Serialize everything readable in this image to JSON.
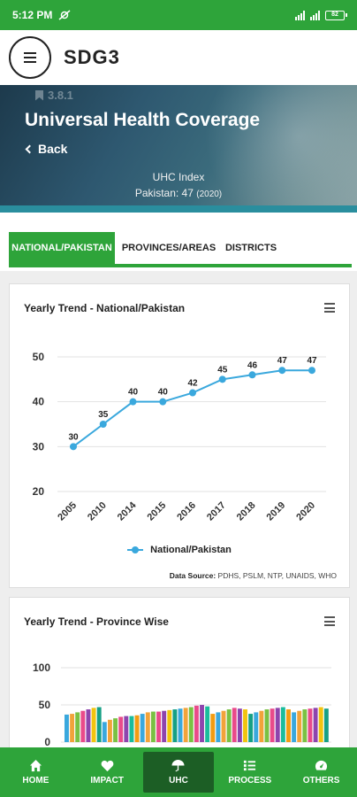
{
  "status": {
    "time": "5:12 PM",
    "battery": "82"
  },
  "app": {
    "title": "SDG3"
  },
  "hero": {
    "code": "3.8.1",
    "title": "Universal Health Coverage",
    "back_label": "Back",
    "index_label": "UHC Index",
    "index_value": "Pakistan: 47",
    "index_year": "(2020)"
  },
  "tabs": [
    {
      "label": "NATIONAL/PAKISTAN"
    },
    {
      "label": "PROVINCES/AREAS"
    },
    {
      "label": "DISTRICTS"
    }
  ],
  "card1": {
    "title": "Yearly Trend - National/Pakistan",
    "legend": "National/Pakistan",
    "source_label": "Data Source:",
    "source_value": "PDHS, PSLM, NTP, UNAIDS, WHO"
  },
  "card2": {
    "title": "Yearly Trend - Province Wise"
  },
  "nav": [
    {
      "label": "HOME",
      "icon": "home-icon"
    },
    {
      "label": "IMPACT",
      "icon": "heart-icon"
    },
    {
      "label": "UHC",
      "icon": "umbrella-icon"
    },
    {
      "label": "PROCESS",
      "icon": "list-icon"
    },
    {
      "label": "OTHERS",
      "icon": "gauge-icon"
    }
  ],
  "chart_data": [
    {
      "type": "line",
      "title": "Yearly Trend - National/Pakistan",
      "categories": [
        "2005",
        "2010",
        "2014",
        "2015",
        "2016",
        "2017",
        "2018",
        "2019",
        "2020"
      ],
      "series": [
        {
          "name": "National/Pakistan",
          "values": [
            30,
            35,
            40,
            40,
            42,
            45,
            46,
            47,
            47
          ],
          "color": "#3aa8dd"
        }
      ],
      "yticks": [
        20,
        30,
        40,
        50
      ],
      "ylim": [
        20,
        50
      ],
      "grid": true,
      "legend": "bottom"
    },
    {
      "type": "bar",
      "title": "Yearly Trend - Province Wise",
      "yticks": [
        0,
        50,
        100
      ],
      "ylim": [
        0,
        100
      ],
      "values": [
        37,
        38,
        40,
        42,
        44,
        46,
        47,
        27,
        30,
        32,
        34,
        35,
        35,
        36,
        38,
        40,
        41,
        41,
        42,
        43,
        44,
        45,
        46,
        47,
        49,
        50,
        48,
        38,
        40,
        42,
        44,
        46,
        45,
        44,
        38,
        40,
        42,
        44,
        45,
        46,
        47,
        44,
        40,
        42,
        44,
        45,
        46,
        47,
        45
      ],
      "colors": [
        "#3aa8dd",
        "#f2a33a",
        "#7ac143",
        "#e94b8a",
        "#8e44ad",
        "#f1c40f",
        "#16a085",
        "#3aa8dd",
        "#f2a33a",
        "#7ac143",
        "#e94b8a",
        "#8e44ad",
        "#1abc9c",
        "#f39c12"
      ]
    }
  ]
}
